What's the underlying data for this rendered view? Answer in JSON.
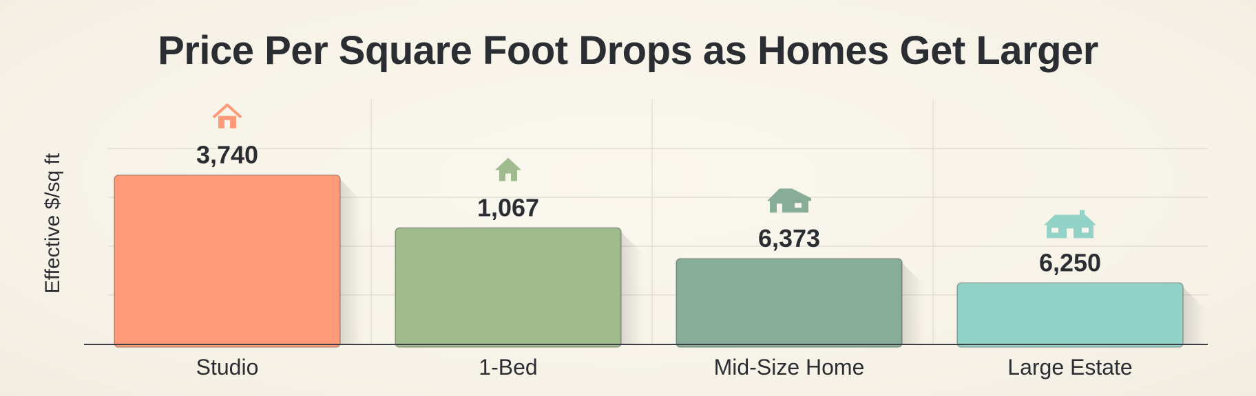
{
  "chart_data": {
    "type": "bar",
    "title": "Price Per Square Foot Drops as Homes Get Larger",
    "ylabel": "Effective $/sq ft",
    "xlabel": "",
    "categories": [
      "Studio",
      "1-Bed",
      "Mid-Size Home",
      "Large Estate"
    ],
    "values": [
      3740,
      1067,
      6373,
      6250
    ],
    "value_labels": [
      "3,740",
      "1,067",
      "6,373",
      "6,250"
    ],
    "bar_level_fraction": [
      0.77,
      0.53,
      0.39,
      0.28
    ],
    "colors": [
      "#fe9a78",
      "#9fbb8e",
      "#87ad98",
      "#93d2c7"
    ],
    "icons": [
      "small-house-icon",
      "cottage-icon",
      "family-house-icon",
      "estate-house-icon"
    ],
    "grid": true,
    "legend": "none"
  }
}
